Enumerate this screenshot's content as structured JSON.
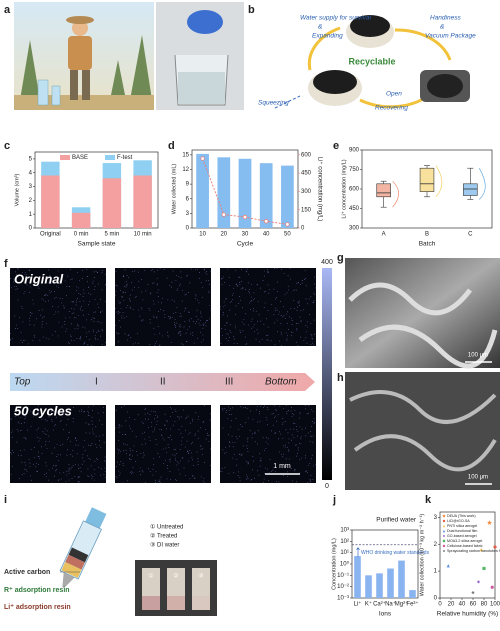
{
  "panel_labels": [
    "a",
    "b",
    "c",
    "d",
    "e",
    "f",
    "g",
    "h",
    "i",
    "j",
    "k"
  ],
  "panel_b": {
    "top_left": "Water supply for survival",
    "amp1": "&",
    "expanding": "Expanding",
    "top_right": "Handiness",
    "amp2": "&",
    "vacuum": "Vacuum Package",
    "center": "Recyclable",
    "left": "Squeezing",
    "open": "Open",
    "recovering": "Recovering"
  },
  "panel_f": {
    "row_labels": [
      "Original",
      "50 cycles"
    ],
    "gradient": {
      "start": "Top",
      "stages": [
        "I",
        "II",
        "III"
      ],
      "end": "Bottom"
    },
    "scale_bar": "1 mm",
    "colorbar": {
      "max": "400",
      "min": "0"
    }
  },
  "panel_gh": {
    "scale_bars": [
      "100 μm",
      "100 μm"
    ]
  },
  "panel_i": {
    "legend": [
      "① Untreated",
      "② Treated",
      "③ DI water"
    ],
    "vial_labels": [
      "①",
      "②",
      "③"
    ],
    "layers": [
      "Active carbon",
      "R⁺ adsorption resin",
      "Li⁺ adsorption resin"
    ]
  },
  "chart_data": [
    {
      "type": "bar",
      "bar_mode": "overlay",
      "categories": [
        "Original",
        "0 min",
        "5 min",
        "10 min"
      ],
      "series": [
        {
          "name": "BASE",
          "color": "#f4a0a0",
          "values": [
            3.8,
            1.1,
            3.6,
            3.8
          ]
        },
        {
          "name": "F-test",
          "color": "#8fd0f2",
          "values": [
            4.8,
            1.5,
            4.7,
            4.9
          ]
        }
      ],
      "ylim": [
        0,
        5.5
      ],
      "yticks": [
        0,
        1,
        2,
        3,
        4,
        5
      ],
      "ylabel": "Volume (cm³)",
      "xlabel": "Sample state"
    },
    {
      "type": "bar",
      "categories": [
        "10",
        "20",
        "30",
        "40",
        "50"
      ],
      "series": [
        {
          "name": "Water collected",
          "color": "#86bdf0",
          "values": [
            15.2,
            14.5,
            14.2,
            13.3,
            12.8
          ]
        },
        {
          "name": "Li⁺ concentration",
          "color": "#ec7a70",
          "axis": "y2",
          "line_style": "dashed",
          "values": [
            570,
            110,
            90,
            55,
            30
          ]
        }
      ],
      "ylim": [
        0,
        16
      ],
      "yticks": [
        0,
        3,
        6,
        9,
        12,
        15
      ],
      "y2lim": [
        0,
        640
      ],
      "y2ticks": [
        0,
        150,
        300,
        450,
        600
      ],
      "ylabel": "Water collected (mL)",
      "y2label": "Li⁺ concentration (mg/L)",
      "xlabel": "Cycle"
    },
    {
      "type": "box",
      "categories": [
        "A",
        "B",
        "C"
      ],
      "colors": [
        "#e8785a",
        "#f2c84b",
        "#4d9fe0"
      ],
      "boxes": [
        {
          "min": 460,
          "q1": 540,
          "median": 570,
          "q3": 640,
          "max": 660
        },
        {
          "min": 540,
          "q1": 580,
          "median": 640,
          "q3": 760,
          "max": 780
        },
        {
          "min": 520,
          "q1": 550,
          "median": 600,
          "q3": 640,
          "max": 760
        }
      ],
      "ylim": [
        300,
        900
      ],
      "yticks": [
        300,
        450,
        600,
        750,
        900
      ],
      "ylabel": "Li⁺ concentration (mg/L)",
      "xlabel": "Batch"
    },
    {
      "type": "bar",
      "log_y": true,
      "color": "#8ab4f0",
      "categories": [
        "Li⁺",
        "K⁺",
        "Ca²⁺",
        "Na⁺",
        "Mg²⁺",
        "Fe³⁺"
      ],
      "values": [
        5,
        0.1,
        0.15,
        0.4,
        2,
        0.005
      ],
      "ylim": [
        0.001,
        1000
      ],
      "yticks": [
        {
          "value": 0.001,
          "label": "10⁻³"
        },
        {
          "value": 0.01,
          "label": "10⁻²"
        },
        {
          "value": 0.1,
          "label": "10⁻¹"
        },
        {
          "value": 1,
          "label": "10⁰"
        },
        {
          "value": 10,
          "label": "10¹"
        },
        {
          "value": 100,
          "label": "10²"
        },
        {
          "value": 1000,
          "label": "10³"
        }
      ],
      "title": "Purified water",
      "reference_line": 50,
      "reference_label": "WHO drinking water standards",
      "ylabel": "Concentration (mg/L)",
      "xlabel": "Ions"
    },
    {
      "type": "scatter",
      "legend": "upper left",
      "series": [
        {
          "name": "DEUA (This work)",
          "color": "#f08a3c",
          "marker": "star",
          "x": [
            90
          ],
          "y": [
            2.8
          ]
        },
        {
          "name": "LiCl@rGO-SA",
          "color": "#e0604a",
          "marker": "circle",
          "x": [
            100
          ],
          "y": [
            1.9
          ]
        },
        {
          "name": "PNTI silica aerogel",
          "color": "#f2c14e",
          "marker": "triangle",
          "x": [
            75
          ],
          "y": [
            1.8
          ]
        },
        {
          "name": "Dual functional film",
          "color": "#5a8fe0",
          "marker": "triangle",
          "x": [
            15
          ],
          "y": [
            1.2
          ]
        },
        {
          "name": "GO-based aerogel",
          "color": "#9a6ad0",
          "marker": "diamond",
          "x": [
            70
          ],
          "y": [
            0.6
          ]
        },
        {
          "name": "MOA3-2 silica aerogel",
          "color": "#58b86a",
          "marker": "square",
          "x": [
            80
          ],
          "y": [
            1.1
          ]
        },
        {
          "name": "Cellulose-based fabric",
          "color": "#d05aa0",
          "marker": "circle",
          "x": [
            95
          ],
          "y": [
            0.4
          ]
        },
        {
          "name": "Spraycoating carbon nanotubes film",
          "color": "#7a7a7a",
          "marker": "diamond",
          "x": [
            60
          ],
          "y": [
            0.2
          ]
        }
      ],
      "xlim": [
        0,
        100
      ],
      "xticks": [
        0,
        20,
        40,
        60,
        80,
        100
      ],
      "ylim": [
        0,
        3.2
      ],
      "yticks": [
        0,
        1,
        2,
        3
      ],
      "ylabel": "Water collection (10⁻³ kg m⁻² h⁻¹)",
      "xlabel": "Relative humidity (%)"
    }
  ]
}
